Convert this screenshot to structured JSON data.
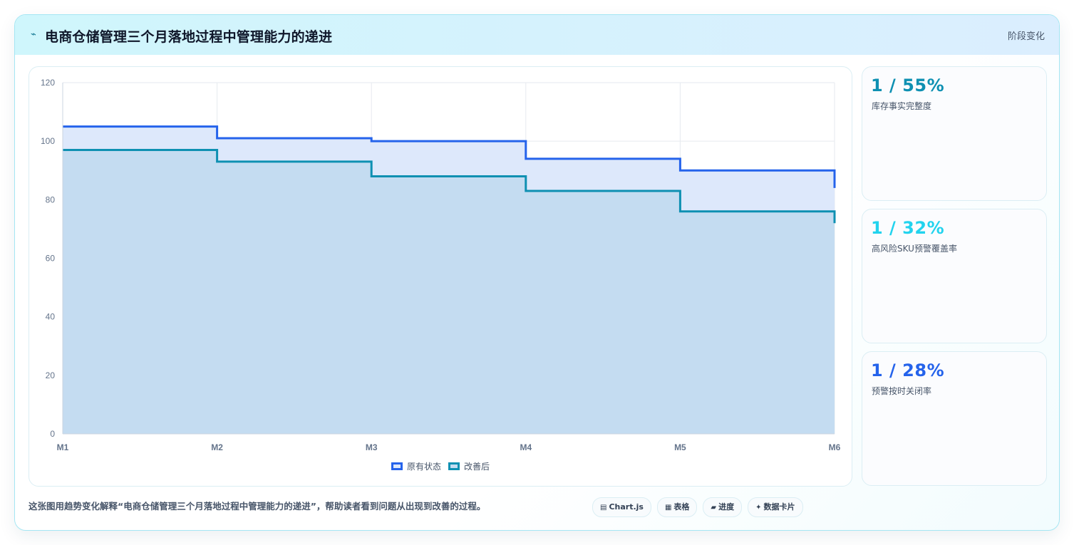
{
  "header": {
    "icon": "chart-icon",
    "title": "电商仓储管理三个月落地过程中管理能力的递进",
    "tag": "阶段变化"
  },
  "stats": [
    {
      "value": "1 / 55%",
      "label": "库存事实完整度",
      "color": "#0e90b2"
    },
    {
      "value": "1 / 32%",
      "label": "高风险SKU预警覆盖率",
      "color": "#22d3ee"
    },
    {
      "value": "1 / 28%",
      "label": "预警按时关闭率",
      "color": "#2563eb"
    }
  ],
  "footer": {
    "description": "这张图用趋势变化解释“电商仓储管理三个月落地过程中管理能力的递进”，帮助读者看到问题从出现到改善的过程。",
    "chips": [
      {
        "icon": "chartjs-icon",
        "glyph": "▤",
        "label": "Chart.js"
      },
      {
        "icon": "table-icon",
        "glyph": "▦",
        "label": "表格"
      },
      {
        "icon": "progress-icon",
        "glyph": "▰",
        "label": "进度"
      },
      {
        "icon": "data-card-icon",
        "glyph": "✦",
        "label": "数据卡片"
      }
    ]
  },
  "chart_data": {
    "type": "area",
    "step": true,
    "categories": [
      "M1",
      "M2",
      "M3",
      "M4",
      "M5",
      "M6"
    ],
    "ylim": [
      0,
      120
    ],
    "yticks": [
      0,
      20,
      40,
      60,
      80,
      100,
      120
    ],
    "grid": true,
    "legend_position": "bottom",
    "series": [
      {
        "name": "原有状态",
        "values": [
          105,
          101,
          100,
          94,
          90,
          84
        ],
        "color": "#2563eb",
        "fill": "#dde8fb"
      },
      {
        "name": "改善后",
        "values": [
          97,
          93,
          88,
          83,
          76,
          72
        ],
        "color": "#0e90b2",
        "fill": "#c4dcf1"
      }
    ]
  }
}
